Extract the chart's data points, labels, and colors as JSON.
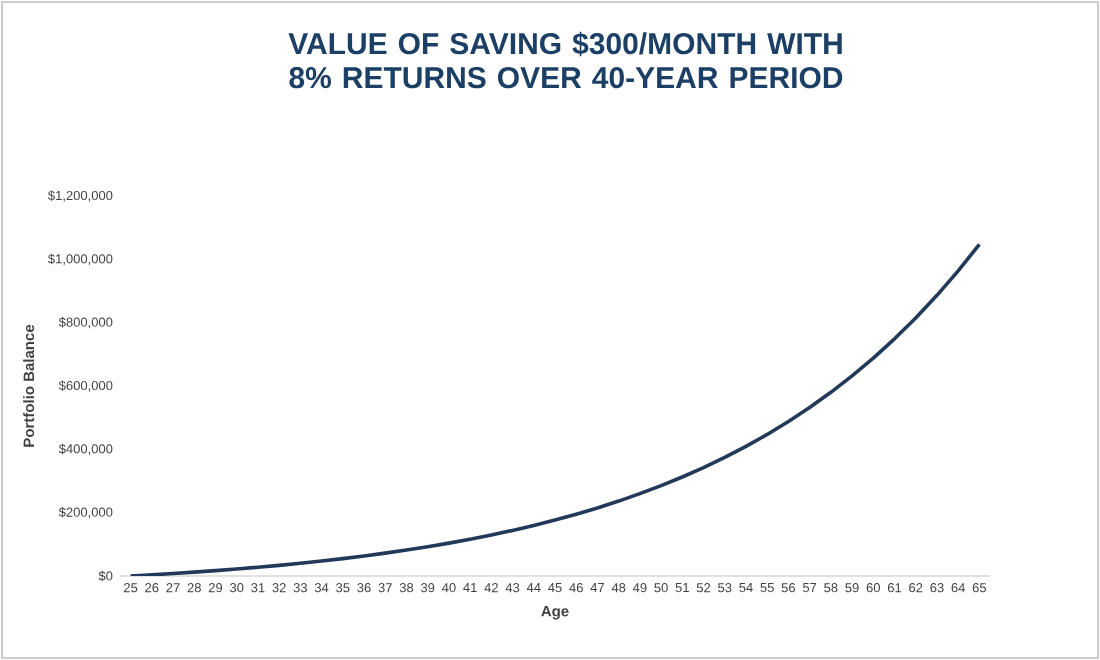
{
  "chart_data": {
    "type": "line",
    "title": "VALUE OF SAVING $300/MONTH WITH 8% RETURNS OVER 40-YEAR PERIOD",
    "xlabel": "Age",
    "ylabel": "Portfolio Balance",
    "categories": [
      "25",
      "26",
      "27",
      "28",
      "29",
      "30",
      "31",
      "32",
      "33",
      "34",
      "35",
      "36",
      "37",
      "38",
      "39",
      "40",
      "41",
      "42",
      "43",
      "44",
      "45",
      "46",
      "47",
      "48",
      "49",
      "50",
      "51",
      "52",
      "53",
      "54",
      "55",
      "56",
      "57",
      "58",
      "59",
      "60",
      "61",
      "62",
      "63",
      "64",
      "65"
    ],
    "series": [
      {
        "color": "#22395a",
        "values": [
          0,
          3700,
          7800,
          12200,
          16900,
          22000,
          27600,
          33600,
          40200,
          47200,
          54900,
          63200,
          72200,
          81900,
          92400,
          103800,
          116200,
          129500,
          144000,
          159700,
          176700,
          195100,
          215000,
          236600,
          260000,
          285300,
          312700,
          342400,
          374600,
          409400,
          447100,
          488000,
          532200,
          580100,
          632000,
          688100,
          749000,
          814900,
          886300,
          963600,
          1047300
        ]
      }
    ],
    "ylim": [
      0,
      1200000
    ],
    "yticks": [
      {
        "value": 0,
        "label": "$0"
      },
      {
        "value": 200000,
        "label": "$200,000"
      },
      {
        "value": 400000,
        "label": "$400,000"
      },
      {
        "value": 600000,
        "label": "$600,000"
      },
      {
        "value": 800000,
        "label": "$800,000"
      },
      {
        "value": 1000000,
        "label": "$1,000,000"
      },
      {
        "value": 1200000,
        "label": "$1,200,000"
      }
    ]
  }
}
